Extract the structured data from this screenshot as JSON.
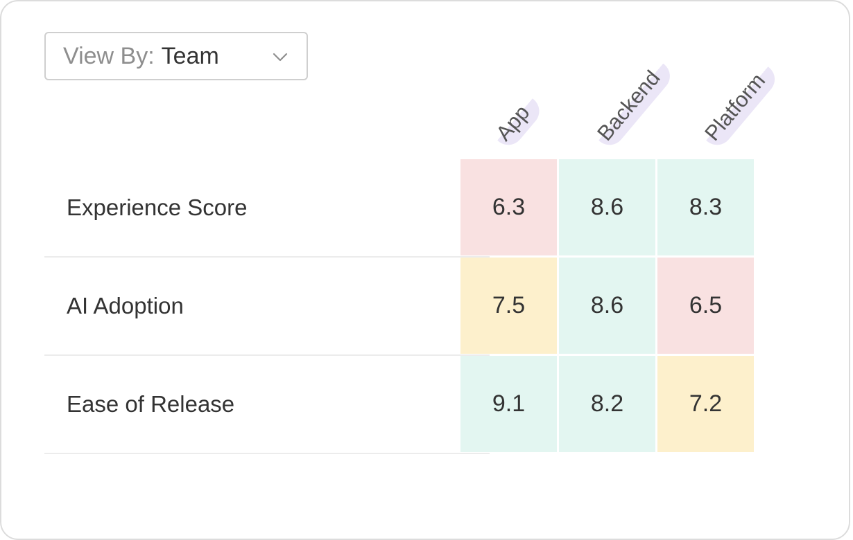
{
  "view_by": {
    "prefix": "View By:",
    "value": "Team"
  },
  "columns": [
    "App",
    "Backend",
    "Platform"
  ],
  "rows": [
    {
      "label": "Experience Score",
      "values": [
        "6.3",
        "8.6",
        "8.3"
      ],
      "status": [
        "red",
        "green",
        "green"
      ]
    },
    {
      "label": "AI Adoption",
      "values": [
        "7.5",
        "8.6",
        "6.5"
      ],
      "status": [
        "yellow",
        "green",
        "red"
      ]
    },
    {
      "label": "Ease of Release",
      "values": [
        "9.1",
        "8.2",
        "7.2"
      ],
      "status": [
        "green",
        "green",
        "yellow"
      ]
    }
  ],
  "colors": {
    "red": "#f9e1e1",
    "green": "#e3f6f1",
    "yellow": "#fdf0cc",
    "column_highlight": "#ebe6f7"
  }
}
